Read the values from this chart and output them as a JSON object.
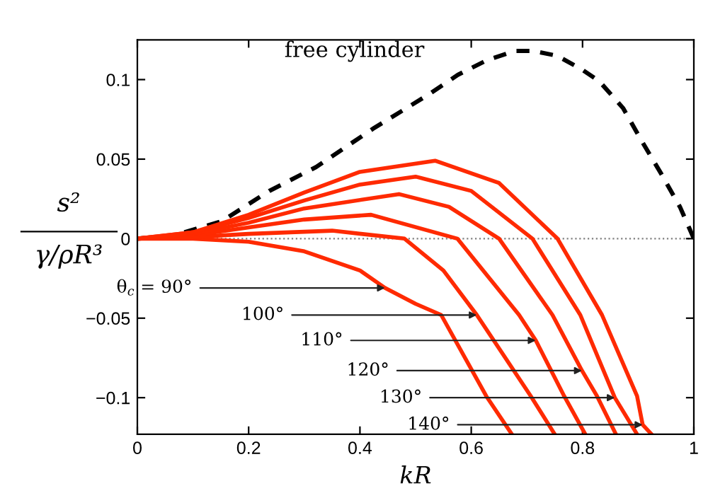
{
  "chart_data": {
    "type": "line",
    "xlabel": "kR",
    "ylabel": "s²\nγ/ρR³",
    "xlim": [
      0,
      1
    ],
    "ylim": [
      -0.123,
      0.125
    ],
    "xticks": [
      0,
      0.2,
      0.4,
      0.6,
      0.8,
      1
    ],
    "yticks": [
      -0.1,
      -0.05,
      0,
      0.05,
      0.1
    ],
    "grid": false,
    "legend": "top",
    "ref_lines": [
      {
        "axis": "y",
        "value": 0,
        "color": "#808080",
        "line_style": "dotted"
      }
    ],
    "series": [
      {
        "name": "free cylinder",
        "color": "#000000",
        "line_style": "dashed",
        "x": [
          0,
          0.066,
          0.152,
          0.237,
          0.321,
          0.372,
          0.423,
          0.474,
          0.525,
          0.576,
          0.627,
          0.678,
          0.712,
          0.754,
          0.796,
          0.83,
          0.873,
          0.907,
          0.941,
          0.975,
          1.0
        ],
        "values": [
          0,
          0.002,
          0.011,
          0.03,
          0.045,
          0.057,
          0.069,
          0.08,
          0.091,
          0.103,
          0.112,
          0.118,
          0.118,
          0.115,
          0.107,
          0.099,
          0.082,
          0.061,
          0.041,
          0.02,
          0
        ]
      },
      {
        "color": "#ff2a00",
        "x": [
          0,
          0.1,
          0.2,
          0.3,
          0.4,
          0.445,
          0.5,
          0.546,
          0.627,
          0.673
        ],
        "values": [
          0,
          0,
          -0.002,
          -0.008,
          -0.02,
          -0.031,
          -0.041,
          -0.048,
          -0.099,
          -0.123
        ]
      },
      {
        "color": "#ff2a00",
        "x": [
          0,
          0.1,
          0.2,
          0.35,
          0.48,
          0.55,
          0.61,
          0.707,
          0.75
        ],
        "values": [
          0,
          0.001,
          0.003,
          0.005,
          0,
          -0.02,
          -0.048,
          -0.099,
          -0.123
        ]
      },
      {
        "color": "#ff2a00",
        "x": [
          0,
          0.1,
          0.2,
          0.3,
          0.42,
          0.575,
          0.686,
          0.716,
          0.767,
          0.805
        ],
        "values": [
          0,
          0.002,
          0.007,
          0.012,
          0.015,
          0,
          -0.048,
          -0.064,
          -0.099,
          -0.123
        ]
      },
      {
        "color": "#ff2a00",
        "x": [
          0,
          0.1,
          0.2,
          0.3,
          0.47,
          0.56,
          0.65,
          0.746,
          0.799,
          0.826,
          0.86
        ],
        "values": [
          0,
          0.003,
          0.01,
          0.019,
          0.028,
          0.02,
          0,
          -0.048,
          -0.083,
          -0.099,
          -0.123
        ]
      },
      {
        "color": "#ff2a00",
        "x": [
          0,
          0.1,
          0.2,
          0.3,
          0.4,
          0.5,
          0.6,
          0.71,
          0.796,
          0.858,
          0.898
        ],
        "values": [
          0,
          0.004,
          0.013,
          0.024,
          0.034,
          0.039,
          0.03,
          0,
          -0.048,
          -0.1,
          -0.123
        ]
      },
      {
        "color": "#ff2a00",
        "x": [
          0,
          0.1,
          0.2,
          0.3,
          0.4,
          0.535,
          0.65,
          0.755,
          0.835,
          0.898,
          0.908,
          0.924
        ],
        "values": [
          0,
          0.004,
          0.015,
          0.029,
          0.042,
          0.049,
          0.035,
          0,
          -0.048,
          -0.099,
          -0.117,
          -0.123
        ]
      }
    ],
    "annotations": [
      {
        "text": "θ$_{c}$ = 90°",
        "x": 0.445,
        "y": -0.031
      },
      {
        "text": "100°",
        "x": 0.61,
        "y": -0.048
      },
      {
        "text": "110°",
        "x": 0.716,
        "y": -0.064
      },
      {
        "text": "120°",
        "x": 0.799,
        "y": -0.083
      },
      {
        "text": "130°",
        "x": 0.858,
        "y": -0.1
      },
      {
        "text": "140°",
        "x": 0.908,
        "y": -0.117
      }
    ]
  }
}
